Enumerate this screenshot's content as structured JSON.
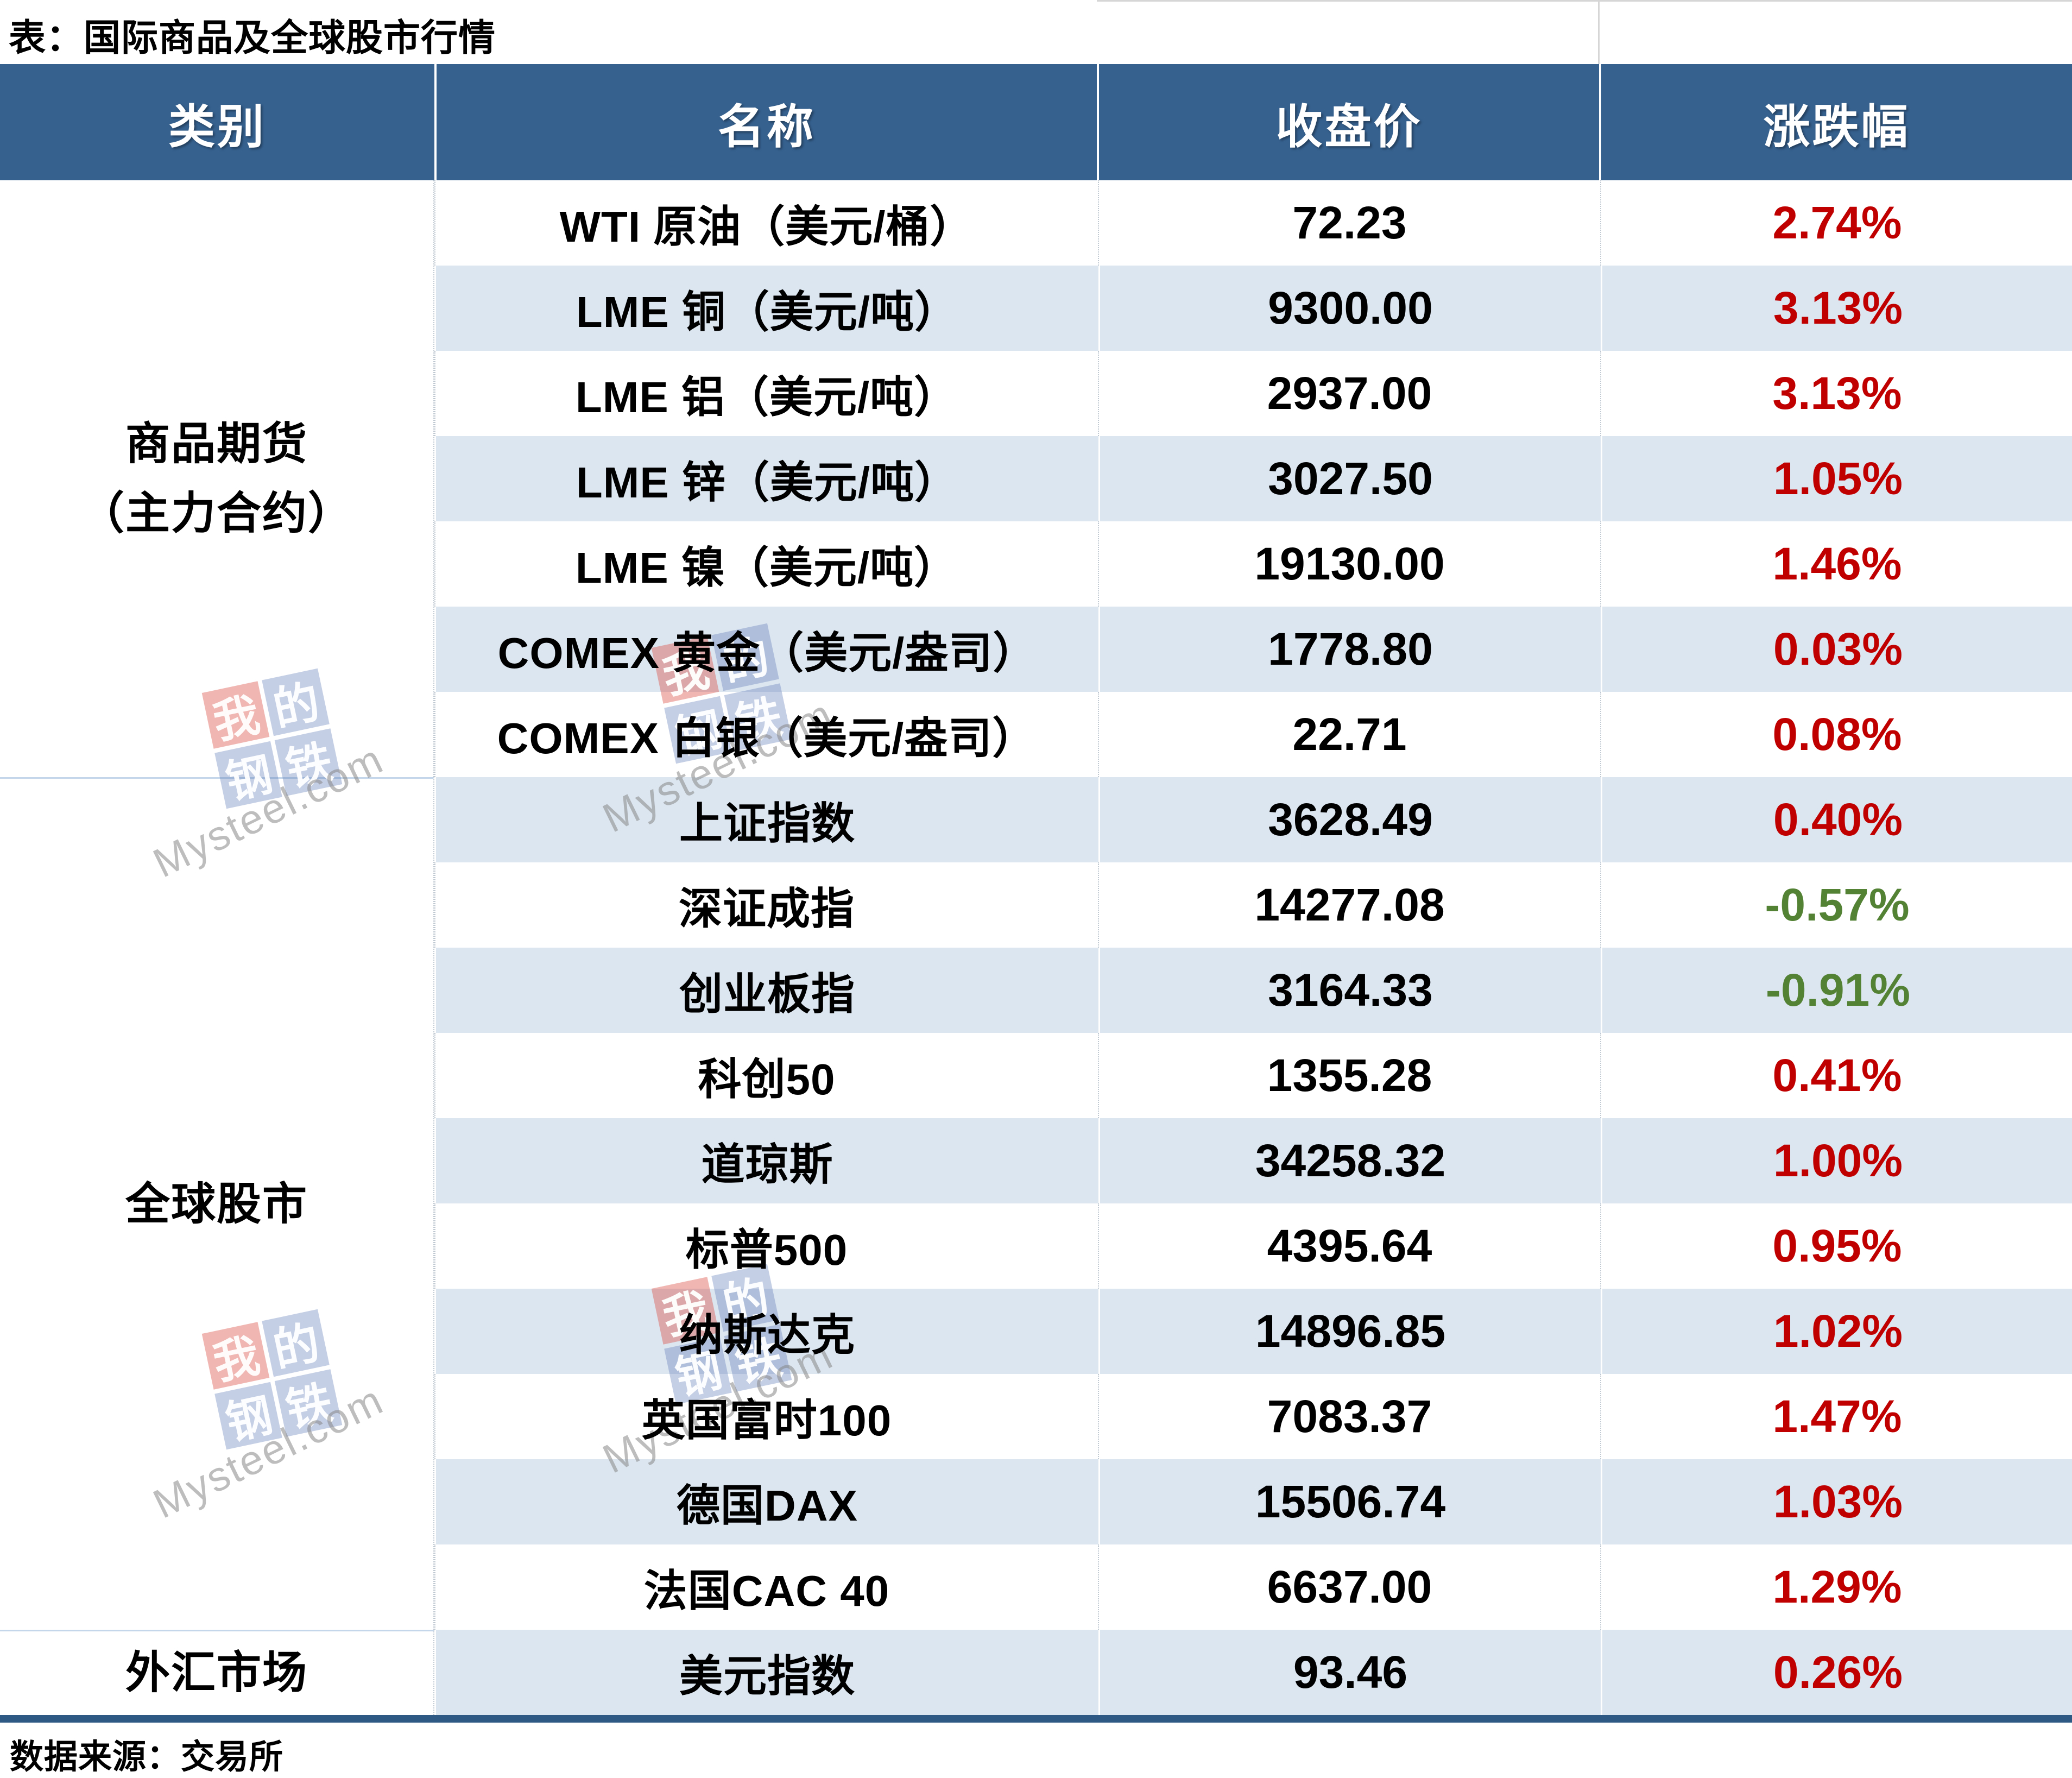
{
  "title": "表：国际商品及全球股市行情",
  "footer": {
    "source": "数据来源：交易所"
  },
  "table": {
    "headers": [
      "类别",
      "名称",
      "收盘价",
      "涨跌幅"
    ],
    "sections": [
      {
        "category_lines": [
          "商品期货",
          "（主力合约）"
        ],
        "rows": [
          {
            "name": "WTI 原油（美元/桶）",
            "close": "72.23",
            "change": "2.74%"
          },
          {
            "name": "LME 铜（美元/吨）",
            "close": "9300.00",
            "change": "3.13%"
          },
          {
            "name": "LME 铝（美元/吨）",
            "close": "2937.00",
            "change": "3.13%"
          },
          {
            "name": "LME 锌（美元/吨）",
            "close": "3027.50",
            "change": "1.05%"
          },
          {
            "name": "LME 镍（美元/吨）",
            "close": "19130.00",
            "change": "1.46%"
          },
          {
            "name": "COMEX 黄金（美元/盎司）",
            "close": "1778.80",
            "change": "0.03%"
          },
          {
            "name": "COMEX 白银（美元/盎司）",
            "close": "22.71",
            "change": "0.08%"
          }
        ]
      },
      {
        "category_lines": [
          "全球股市"
        ],
        "rows": [
          {
            "name": "上证指数",
            "close": "3628.49",
            "change": "0.40%"
          },
          {
            "name": "深证成指",
            "close": "14277.08",
            "change": "-0.57%"
          },
          {
            "name": "创业板指",
            "close": "3164.33",
            "change": "-0.91%"
          },
          {
            "name": "科创50",
            "close": "1355.28",
            "change": "0.41%"
          },
          {
            "name": "道琼斯",
            "close": "34258.32",
            "change": "1.00%"
          },
          {
            "name": "标普500",
            "close": "4395.64",
            "change": "0.95%"
          },
          {
            "name": "纳斯达克",
            "close": "14896.85",
            "change": "1.02%"
          },
          {
            "name": "英国富时100",
            "close": "7083.37",
            "change": "1.47%"
          },
          {
            "name": "德国DAX",
            "close": "15506.74",
            "change": "1.03%"
          },
          {
            "name": "法国CAC 40",
            "close": "6637.00",
            "change": "1.29%"
          }
        ]
      },
      {
        "category_lines": [
          "外汇市场"
        ],
        "rows": [
          {
            "name": "美元指数",
            "close": "93.46",
            "change": "0.26%"
          }
        ]
      }
    ]
  },
  "watermark": {
    "tiles": [
      {
        "char": "我",
        "color": "red"
      },
      {
        "char": "的",
        "color": "blue"
      },
      {
        "char": "钢",
        "color": "blue"
      },
      {
        "char": "铁",
        "color": "blue"
      }
    ],
    "text": "Mysteel.com"
  },
  "colors": {
    "header_bg": "#36618F",
    "row_alt_bg": "#DCE6F1",
    "up_red": "#C00000",
    "down_green": "#548235",
    "bottom_border": "#2E5984"
  },
  "chart_data": {
    "type": "table",
    "title": "表：国际商品及全球股市行情",
    "columns": [
      "类别",
      "名称",
      "收盘价",
      "涨跌幅"
    ],
    "rows": [
      [
        "商品期货（主力合约）",
        "WTI 原油（美元/桶）",
        72.23,
        "2.74%"
      ],
      [
        "商品期货（主力合约）",
        "LME 铜（美元/吨）",
        9300.0,
        "3.13%"
      ],
      [
        "商品期货（主力合约）",
        "LME 铝（美元/吨）",
        2937.0,
        "3.13%"
      ],
      [
        "商品期货（主力合约）",
        "LME 锌（美元/吨）",
        3027.5,
        "1.05%"
      ],
      [
        "商品期货（主力合约）",
        "LME 镍（美元/吨）",
        19130.0,
        "1.46%"
      ],
      [
        "商品期货（主力合约）",
        "COMEX 黄金（美元/盎司）",
        1778.8,
        "0.03%"
      ],
      [
        "商品期货（主力合约）",
        "COMEX 白银（美元/盎司）",
        22.71,
        "0.08%"
      ],
      [
        "全球股市",
        "上证指数",
        3628.49,
        "0.40%"
      ],
      [
        "全球股市",
        "深证成指",
        14277.08,
        "-0.57%"
      ],
      [
        "全球股市",
        "创业板指",
        3164.33,
        "-0.91%"
      ],
      [
        "全球股市",
        "科创50",
        1355.28,
        "0.41%"
      ],
      [
        "全球股市",
        "道琼斯",
        34258.32,
        "1.00%"
      ],
      [
        "全球股市",
        "标普500",
        4395.64,
        "0.95%"
      ],
      [
        "全球股市",
        "纳斯达克",
        14896.85,
        "1.02%"
      ],
      [
        "全球股市",
        "英国富时100",
        7083.37,
        "1.47%"
      ],
      [
        "全球股市",
        "德国DAX",
        15506.74,
        "1.03%"
      ],
      [
        "全球股市",
        "法国CAC 40",
        6637.0,
        "1.29%"
      ],
      [
        "外汇市场",
        "美元指数",
        93.46,
        "0.26%"
      ]
    ],
    "value_color_rule": "positive change = red (#C00000), negative change = green (#548235)",
    "source": "数据来源：交易所"
  }
}
